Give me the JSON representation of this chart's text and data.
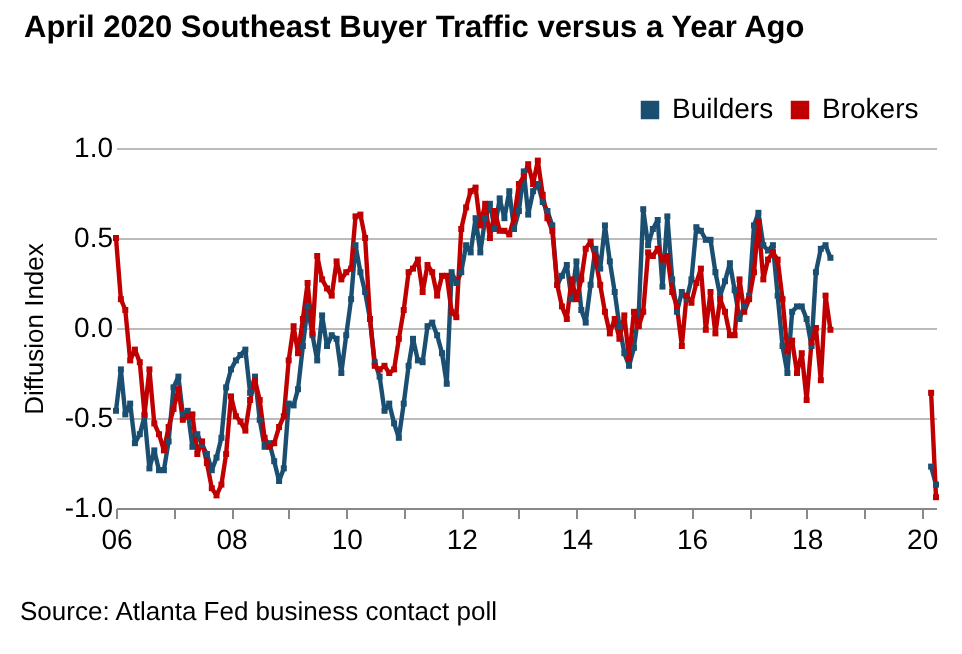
{
  "chart_data": {
    "type": "line",
    "title": "April 2020 Southeast Buyer Traffic versus a Year Ago",
    "ylabel": "Diffusion Index",
    "annotations": [
      "Source: Atlanta Fed business contact poll"
    ],
    "x": [
      "2006-01",
      "2006-02",
      "2006-03",
      "2006-04",
      "2006-05",
      "2006-06",
      "2006-07",
      "2006-08",
      "2006-09",
      "2006-10",
      "2006-11",
      "2006-12",
      "2007-01",
      "2007-02",
      "2007-03",
      "2007-04",
      "2007-05",
      "2007-06",
      "2007-07",
      "2007-08",
      "2007-09",
      "2007-10",
      "2007-11",
      "2007-12",
      "2008-01",
      "2008-02",
      "2008-03",
      "2008-04",
      "2008-05",
      "2008-06",
      "2008-07",
      "2008-08",
      "2008-09",
      "2008-10",
      "2008-11",
      "2008-12",
      "2009-01",
      "2009-02",
      "2009-03",
      "2009-04",
      "2009-05",
      "2009-06",
      "2009-07",
      "2009-08",
      "2009-09",
      "2009-10",
      "2009-11",
      "2009-12",
      "2010-01",
      "2010-02",
      "2010-03",
      "2010-04",
      "2010-05",
      "2010-06",
      "2010-07",
      "2010-08",
      "2010-09",
      "2010-10",
      "2010-11",
      "2010-12",
      "2011-01",
      "2011-02",
      "2011-03",
      "2011-04",
      "2011-05",
      "2011-06",
      "2011-07",
      "2011-08",
      "2011-09",
      "2011-10",
      "2011-11",
      "2011-12",
      "2012-01",
      "2012-02",
      "2012-03",
      "2012-04",
      "2012-05",
      "2012-06",
      "2012-07",
      "2012-08",
      "2012-09",
      "2012-10",
      "2012-11",
      "2012-12",
      "2013-01",
      "2013-02",
      "2013-03",
      "2013-04",
      "2013-05",
      "2013-06",
      "2013-07",
      "2013-08",
      "2013-09",
      "2013-10",
      "2013-11",
      "2013-12",
      "2014-01",
      "2014-02",
      "2014-03",
      "2014-04",
      "2014-05",
      "2014-06",
      "2014-07",
      "2014-08",
      "2014-09",
      "2014-10",
      "2014-11",
      "2014-12",
      "2015-01",
      "2015-02",
      "2015-03",
      "2015-04",
      "2015-05",
      "2015-06",
      "2015-07",
      "2015-08",
      "2015-09",
      "2015-10",
      "2015-11",
      "2015-12",
      "2016-01",
      "2016-02",
      "2016-03",
      "2016-04",
      "2016-05",
      "2016-06",
      "2016-07",
      "2016-08",
      "2016-09",
      "2016-10",
      "2016-11",
      "2016-12",
      "2017-01",
      "2017-02",
      "2017-03",
      "2017-04",
      "2017-05",
      "2017-06",
      "2017-07",
      "2017-08",
      "2017-09",
      "2017-10",
      "2017-11",
      "2017-12",
      "2018-01",
      "2018-02",
      "2018-03",
      "2018-04",
      "2018-05",
      "2018-06",
      "2018-07",
      "2020-03",
      "2020-04"
    ],
    "series": [
      {
        "name": "Builders",
        "color": "#1a4f72",
        "values": [
          -0.46,
          -0.23,
          -0.48,
          -0.42,
          -0.64,
          -0.59,
          -0.49,
          -0.78,
          -0.68,
          -0.79,
          -0.79,
          -0.63,
          -0.33,
          -0.27,
          -0.48,
          -0.46,
          -0.66,
          -0.59,
          -0.65,
          -0.7,
          -0.79,
          -0.72,
          -0.61,
          -0.33,
          -0.23,
          -0.18,
          -0.15,
          -0.12,
          -0.36,
          -0.27,
          -0.51,
          -0.66,
          -0.64,
          -0.74,
          -0.85,
          -0.78,
          -0.42,
          -0.43,
          -0.34,
          -0.1,
          0.12,
          -0.04,
          -0.18,
          0.07,
          -0.1,
          -0.04,
          -0.06,
          -0.25,
          -0.04,
          0.16,
          0.46,
          0.31,
          0.2,
          0.05,
          -0.19,
          -0.27,
          -0.46,
          -0.42,
          -0.53,
          -0.61,
          -0.42,
          -0.21,
          -0.06,
          -0.18,
          -0.19,
          0.01,
          0.03,
          -0.04,
          -0.14,
          -0.31,
          0.31,
          0.25,
          0.31,
          0.46,
          0.42,
          0.61,
          0.42,
          0.61,
          0.69,
          0.55,
          0.72,
          0.61,
          0.76,
          0.55,
          0.65,
          0.87,
          0.63,
          0.76,
          0.8,
          0.7,
          0.65,
          0.57,
          0.24,
          0.29,
          0.35,
          0.16,
          0.37,
          0.1,
          0.03,
          0.24,
          0.44,
          0.33,
          0.57,
          0.37,
          0.2,
          0.01,
          -0.14,
          -0.21,
          -0.11,
          0.09,
          0.66,
          0.46,
          0.55,
          0.6,
          0.23,
          0.62,
          0.27,
          0.09,
          0.2,
          0.16,
          0.27,
          0.56,
          0.54,
          0.49,
          0.49,
          0.31,
          0.18,
          0.26,
          0.36,
          0.21,
          0.05,
          0.12,
          0.18,
          0.57,
          0.64,
          0.46,
          0.43,
          0.46,
          0.18,
          -0.1,
          -0.25,
          0.09,
          0.12,
          0.12,
          0.05,
          -0.1,
          0.31,
          0.44,
          0.46,
          0.39,
          null,
          -0.77,
          -0.87
        ]
      },
      {
        "name": "Brokers",
        "color": "#c00000",
        "values": [
          0.5,
          0.16,
          0.1,
          -0.18,
          -0.12,
          -0.19,
          -0.48,
          -0.23,
          -0.53,
          -0.59,
          -0.68,
          -0.55,
          -0.45,
          -0.34,
          -0.51,
          -0.49,
          -0.48,
          -0.7,
          -0.63,
          -0.75,
          -0.89,
          -0.93,
          -0.87,
          -0.7,
          -0.38,
          -0.49,
          -0.52,
          -0.57,
          -0.4,
          -0.29,
          -0.4,
          -0.61,
          -0.66,
          -0.64,
          -0.55,
          -0.49,
          -0.18,
          0.01,
          -0.14,
          0.05,
          0.25,
          -0.03,
          0.4,
          0.27,
          0.22,
          0.18,
          0.37,
          0.27,
          0.31,
          0.33,
          0.62,
          0.63,
          0.5,
          0.05,
          -0.21,
          -0.23,
          -0.21,
          -0.25,
          -0.23,
          -0.06,
          0.1,
          0.31,
          0.33,
          0.38,
          0.2,
          0.35,
          0.31,
          0.18,
          0.29,
          0.29,
          0.09,
          0.06,
          0.55,
          0.67,
          0.76,
          0.78,
          0.57,
          0.69,
          0.5,
          0.65,
          0.54,
          0.54,
          0.52,
          0.61,
          0.8,
          0.84,
          0.91,
          0.8,
          0.93,
          0.74,
          0.61,
          0.54,
          0.24,
          0.12,
          0.05,
          0.27,
          0.16,
          0.27,
          0.44,
          0.48,
          0.39,
          0.24,
          0.09,
          -0.03,
          0.05,
          -0.06,
          0.07,
          -0.17,
          0.09,
          0.01,
          0.09,
          0.42,
          0.4,
          0.44,
          0.38,
          0.4,
          0.2,
          0.12,
          -0.1,
          0.18,
          0.14,
          0.25,
          0.33,
          -0.01,
          0.2,
          -0.03,
          0.16,
          0.09,
          -0.04,
          -0.04,
          0.27,
          0.09,
          0.16,
          0.31,
          0.59,
          0.27,
          0.38,
          0.42,
          0.38,
          0.16,
          -0.13,
          -0.07,
          -0.25,
          -0.14,
          -0.4,
          -0.08,
          0,
          -0.29,
          0.18,
          -0.01,
          null,
          -0.36,
          -0.94
        ]
      }
    ],
    "xlim": [
      "2006-01",
      "2020-04"
    ],
    "xticks": [
      {
        "value": "2006",
        "label": "06"
      },
      {
        "value": "2007",
        "label": null
      },
      {
        "value": "2008",
        "label": "08"
      },
      {
        "value": "2009",
        "label": null
      },
      {
        "value": "2010",
        "label": "10"
      },
      {
        "value": "2011",
        "label": null
      },
      {
        "value": "2012",
        "label": "12"
      },
      {
        "value": "2013",
        "label": null
      },
      {
        "value": "2014",
        "label": "14"
      },
      {
        "value": "2015",
        "label": null
      },
      {
        "value": "2016",
        "label": "16"
      },
      {
        "value": "2017",
        "label": null
      },
      {
        "value": "2018",
        "label": "18"
      },
      {
        "value": "2019",
        "label": null
      },
      {
        "value": "2020",
        "label": "20"
      }
    ],
    "ylim": [
      -1,
      1
    ],
    "yticks": [
      {
        "value": -1,
        "label": "-1.0"
      },
      {
        "value": -0.5,
        "label": "-0.5"
      },
      {
        "value": 0,
        "label": "0.0"
      },
      {
        "value": 0.5,
        "label": "0.5"
      },
      {
        "value": 1,
        "label": "1.0"
      }
    ],
    "grid": "y",
    "legend": "top right",
    "marker": "square",
    "line_style": "solid"
  }
}
